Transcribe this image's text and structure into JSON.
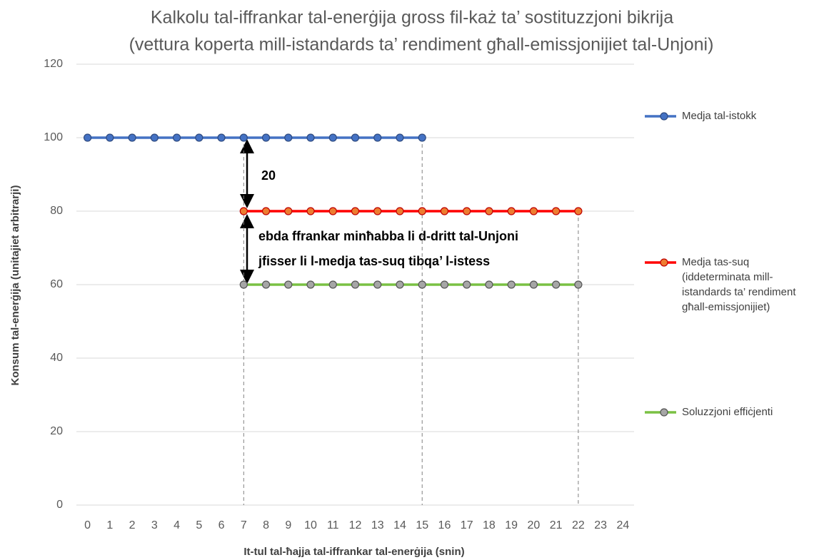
{
  "chart_data": {
    "type": "line",
    "title": [
      "Kalkolu tal-iffrankar tal-enerġija gross fil-każ ta’ sostituzzjoni bikrija",
      "(vettura koperta mill-istandards ta’ rendiment għall-emissjonijiet tal-Unjoni)"
    ],
    "xlabel": "It-tul tal-ħajja tal-iffrankar tal-enerġija (snin)",
    "ylabel": "Konsum tal-enerġija (unitajiet arbitrarji)",
    "xlim": [
      -0.5,
      24.5
    ],
    "xticks": [
      0,
      1,
      2,
      3,
      4,
      5,
      6,
      7,
      8,
      9,
      10,
      11,
      12,
      13,
      14,
      15,
      16,
      17,
      18,
      19,
      20,
      21,
      22,
      23,
      24
    ],
    "ylim": [
      0,
      120
    ],
    "yticks": [
      0,
      20,
      40,
      60,
      80,
      100,
      120
    ],
    "grid": true,
    "legend": "right",
    "drop_lines_x": [
      7,
      15,
      22
    ],
    "series": [
      {
        "name": "Medja tal-istokk",
        "color": "#4472c4",
        "marker_color": "#4472c4",
        "marker_edge": "#2f4b80",
        "x": [
          0,
          1,
          2,
          3,
          4,
          5,
          6,
          7,
          8,
          9,
          10,
          11,
          12,
          13,
          14,
          15
        ],
        "values": [
          100,
          100,
          100,
          100,
          100,
          100,
          100,
          100,
          100,
          100,
          100,
          100,
          100,
          100,
          100,
          100
        ]
      },
      {
        "name": "Medja tas-suq (iddeterminata mill-istandards ta’ rendiment għall-emissjonijiet)",
        "color": "#ff0000",
        "marker_color": "#ed7d31",
        "marker_edge": "#c00000",
        "x": [
          7,
          8,
          9,
          10,
          11,
          12,
          13,
          14,
          15,
          16,
          17,
          18,
          19,
          20,
          21,
          22
        ],
        "values": [
          80,
          80,
          80,
          80,
          80,
          80,
          80,
          80,
          80,
          80,
          80,
          80,
          80,
          80,
          80,
          80
        ]
      },
      {
        "name": "Soluzzjoni effiċjenti",
        "color": "#7ac143",
        "marker_color": "#a6a6a6",
        "marker_edge": "#555555",
        "x": [
          7,
          8,
          9,
          10,
          11,
          12,
          13,
          14,
          15,
          16,
          17,
          18,
          19,
          20,
          21,
          22
        ],
        "values": [
          60,
          60,
          60,
          60,
          60,
          60,
          60,
          60,
          60,
          60,
          60,
          60,
          60,
          60,
          60,
          60
        ]
      }
    ],
    "annotations": [
      "20",
      "ebda ffrankar minħabba li d-dritt tal-Unjoni",
      "jfisser li l-medja tas-suq tibqa’ l-istess"
    ]
  }
}
